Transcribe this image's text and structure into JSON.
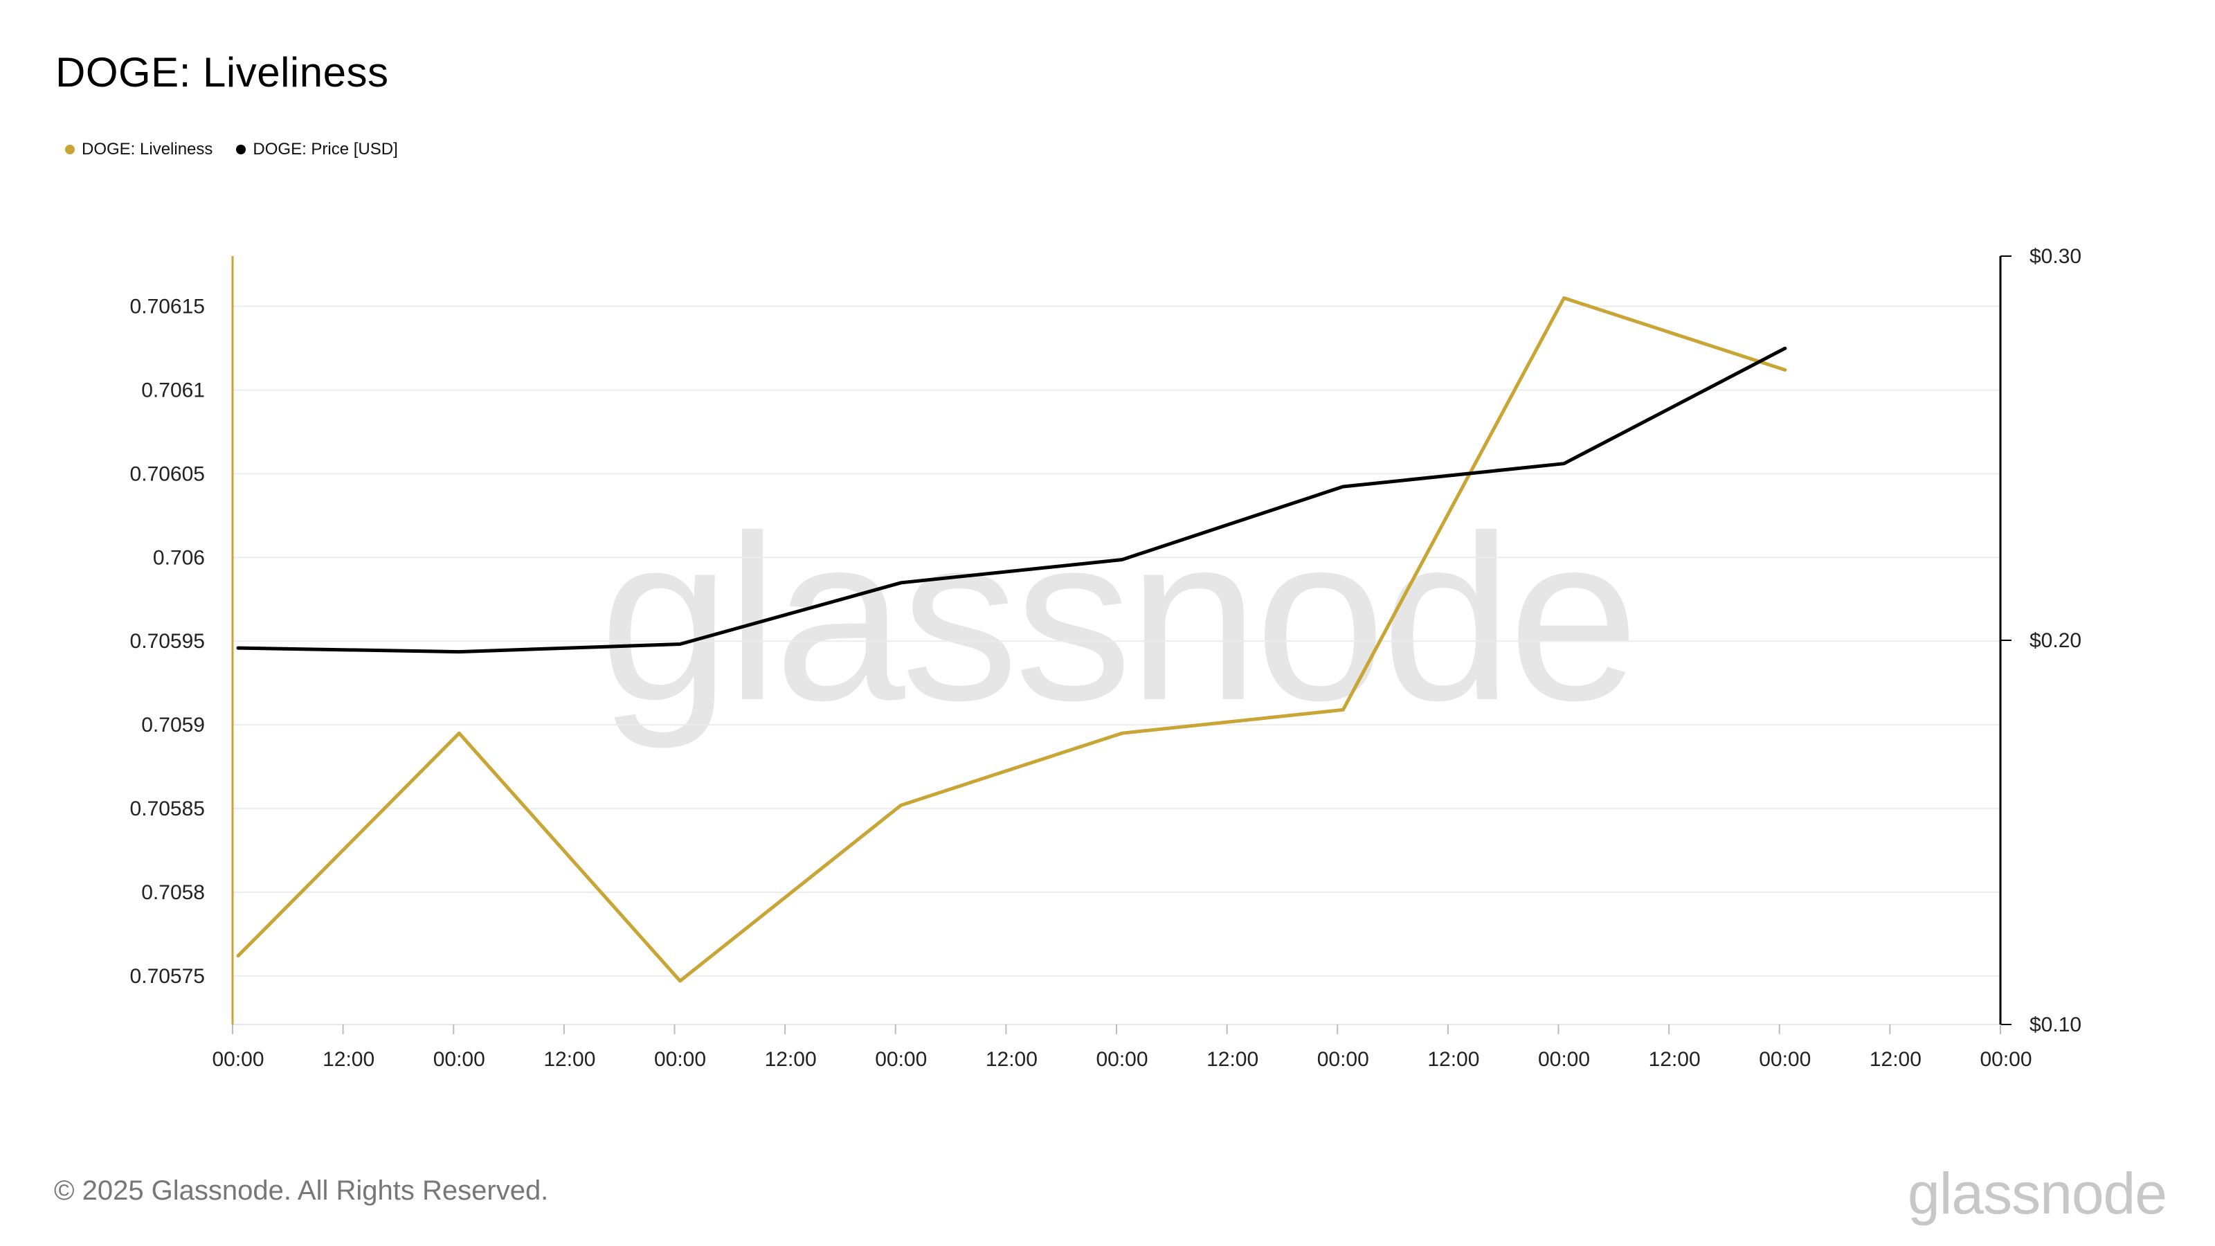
{
  "title": "DOGE: Liveliness",
  "legend": [
    {
      "label": "DOGE: Liveliness",
      "color": "#c8a534"
    },
    {
      "label": "DOGE: Price [USD]",
      "color": "#000000"
    }
  ],
  "watermark": "glassnode",
  "footer": {
    "copyright": "© 2025 Glassnode. All Rights Reserved.",
    "logo": "glassnode"
  },
  "chart_data": {
    "type": "line",
    "title": "DOGE: Liveliness",
    "x_tick_labels": [
      "00:00",
      "12:00",
      "00:00",
      "12:00",
      "00:00",
      "12:00",
      "00:00",
      "12:00",
      "00:00",
      "12:00",
      "00:00",
      "12:00",
      "00:00",
      "12:00",
      "00:00",
      "12:00",
      "00:00"
    ],
    "y_left": {
      "tick_labels": [
        "0.70615",
        "0.7061",
        "0.70605",
        "0.706",
        "0.70595",
        "0.7059",
        "0.70585",
        "0.7058",
        "0.70575"
      ],
      "ticks": [
        0.70615,
        0.7061,
        0.70605,
        0.706,
        0.70595,
        0.7059,
        0.70585,
        0.7058,
        0.70575
      ],
      "range": [
        0.705721,
        0.70618
      ],
      "color": "#c8a534"
    },
    "y_right": {
      "tick_labels": [
        "$0.30",
        "$0.20",
        "$0.10"
      ],
      "ticks": [
        0.3,
        0.2,
        0.1
      ],
      "range": [
        0.1,
        0.3
      ],
      "color": "#000000"
    },
    "grid": true,
    "legend_position": "top-left",
    "series": [
      {
        "name": "DOGE: Liveliness",
        "axis": "left",
        "color": "#c8a534",
        "x_index": [
          0,
          2,
          4,
          6,
          8,
          10,
          12,
          14
        ],
        "values": [
          0.705762,
          0.705895,
          0.705747,
          0.705852,
          0.705895,
          0.705909,
          0.706155,
          0.706112
        ]
      },
      {
        "name": "DOGE: Price [USD]",
        "axis": "right",
        "color": "#000000",
        "x_index": [
          0,
          2,
          4,
          6,
          8,
          10,
          12,
          14
        ],
        "values": [
          0.198,
          0.197,
          0.199,
          0.215,
          0.221,
          0.24,
          0.246,
          0.276
        ]
      }
    ]
  }
}
